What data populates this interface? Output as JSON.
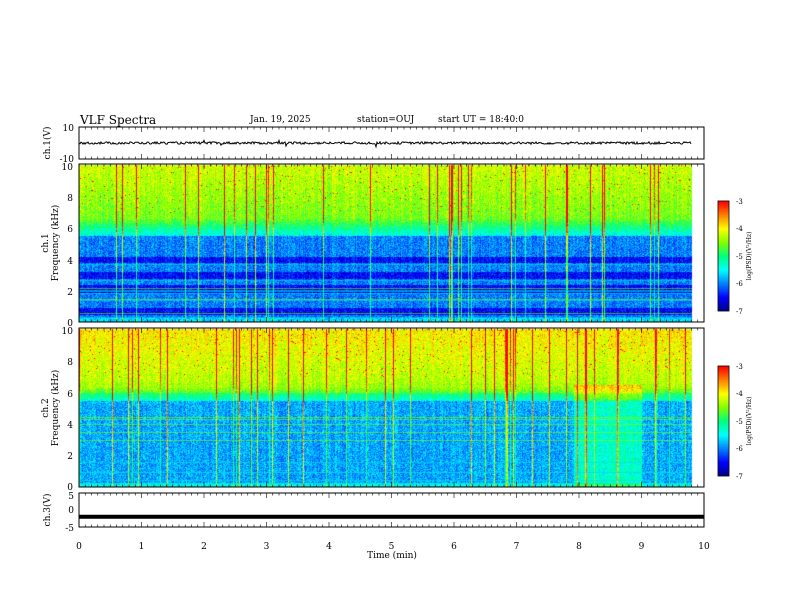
{
  "header": {
    "title": "VLF Spectra",
    "date": "Jan. 19, 2025",
    "station": "station=OUJ",
    "start": "start UT = 18:40:0"
  },
  "chart_data": [
    {
      "type": "line",
      "panel": "ch.1 waveform",
      "ylabel": "ch.1(V)",
      "ylim": [
        -10,
        10
      ],
      "yticks": [
        "10",
        "-10"
      ],
      "x_range_min": [
        0,
        9.8
      ],
      "baseline_v": 0,
      "amplitude_v": 1.5
    },
    {
      "type": "heatmap",
      "panel": "ch.1 spectrogram",
      "ylabel_lines": [
        "ch.1",
        "Frequency (kHz)"
      ],
      "ylim": [
        0,
        10
      ],
      "yticks": [
        "0",
        "2",
        "4",
        "6",
        "8",
        "10"
      ],
      "x_range_min": [
        0,
        9.8
      ],
      "colorbar": {
        "label": "log(PSD)(V²/Hz)",
        "range": [
          -7,
          -3
        ],
        "ticks": [
          "-3",
          "-4",
          "-5",
          "-6",
          "-7"
        ]
      },
      "quiet_bands_khz": [
        [
          0.5,
          0.9
        ],
        [
          1.9,
          2.4
        ],
        [
          2.8,
          3.2
        ],
        [
          3.8,
          4.2
        ]
      ],
      "features": "broadband impulsive sferics 0–10 kHz, green/yellow above ~6.5 kHz, deep blue below ~6 kHz"
    },
    {
      "type": "heatmap",
      "panel": "ch.2 spectrogram",
      "ylabel_lines": [
        "ch.2",
        "Frequency (kHz)"
      ],
      "ylim": [
        0,
        10
      ],
      "yticks": [
        "0",
        "2",
        "4",
        "6",
        "8",
        "10"
      ],
      "x_range_min": [
        0,
        9.8
      ],
      "colorbar": {
        "label": "log(PSD)(V²/Hz)",
        "range": [
          -7,
          -3
        ],
        "ticks": [
          "-3",
          "-4",
          "-5",
          "-6",
          "-7"
        ]
      },
      "features": "stronger emission above ~6 kHz with red/yellow columns; enhanced broadband activity around 8.0–9.0 min"
    },
    {
      "type": "line",
      "panel": "ch.3 waveform",
      "ylabel": "ch.3(V)",
      "ylim": [
        -5,
        5
      ],
      "yticks": [
        "5",
        "0",
        "-5"
      ],
      "x_range_min": [
        0,
        9.8
      ],
      "level_v": -2
    }
  ],
  "xaxis": {
    "label": "Time (min)",
    "ticks": [
      "0",
      "1",
      "2",
      "3",
      "4",
      "5",
      "6",
      "7",
      "8",
      "9",
      "10"
    ],
    "range": [
      0,
      10
    ]
  },
  "colormap": [
    "#000080",
    "#0000ff",
    "#0080ff",
    "#00ffff",
    "#00ff80",
    "#80ff00",
    "#ffff00",
    "#ff8000",
    "#ff0000",
    "#ffffff"
  ]
}
